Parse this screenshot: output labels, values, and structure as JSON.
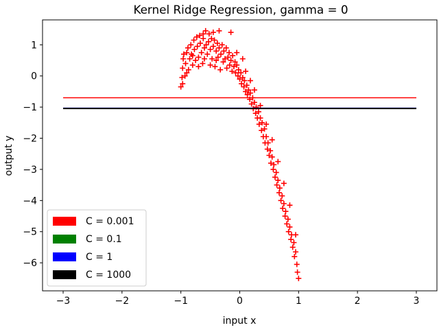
{
  "chart_data": {
    "type": "scatter",
    "title": "Kernel Ridge Regression, gamma = 0",
    "xlabel": "input x",
    "ylabel": "output y",
    "xlim": [
      -3.35,
      3.35
    ],
    "ylim": [
      -6.9,
      1.8
    ],
    "xticks": [
      -3,
      -2,
      -1,
      0,
      1,
      2,
      3
    ],
    "yticks": [
      1,
      0,
      -1,
      -2,
      -3,
      -4,
      -5,
      -6
    ],
    "grid": false,
    "legend_position": "lower-left",
    "scatter": {
      "marker": "+",
      "color": "#ff0000",
      "points": [
        [
          -1.0,
          -0.35
        ],
        [
          -0.98,
          -0.05
        ],
        [
          -0.97,
          0.25
        ],
        [
          -0.96,
          0.55
        ],
        [
          -0.95,
          0.7
        ],
        [
          -0.93,
          0.0
        ],
        [
          -0.92,
          0.4
        ],
        [
          -0.9,
          0.75
        ],
        [
          -0.88,
          0.9
        ],
        [
          -0.87,
          0.2
        ],
        [
          -0.85,
          0.55
        ],
        [
          -0.83,
          1.0
        ],
        [
          -0.82,
          0.7
        ],
        [
          -0.8,
          0.35
        ],
        [
          -0.78,
          1.15
        ],
        [
          -0.77,
          0.85
        ],
        [
          -0.75,
          0.5
        ],
        [
          -0.73,
          1.25
        ],
        [
          -0.72,
          0.95
        ],
        [
          -0.7,
          0.6
        ],
        [
          -0.68,
          1.3
        ],
        [
          -0.67,
          1.05
        ],
        [
          -0.65,
          0.75
        ],
        [
          -0.63,
          0.4
        ],
        [
          -0.62,
          1.2
        ],
        [
          -0.6,
          0.9
        ],
        [
          -0.58,
          1.45
        ],
        [
          -0.57,
          1.0
        ],
        [
          -0.55,
          0.7
        ],
        [
          -0.53,
          1.1
        ],
        [
          -0.52,
          1.35
        ],
        [
          -0.5,
          0.85
        ],
        [
          -0.48,
          1.2
        ],
        [
          -0.47,
          0.55
        ],
        [
          -0.45,
          0.95
        ],
        [
          -0.43,
          1.15
        ],
        [
          -0.42,
          0.3
        ],
        [
          -0.4,
          0.8
        ],
        [
          -0.38,
          1.05
        ],
        [
          -0.37,
          0.6
        ],
        [
          -0.35,
          0.9
        ],
        [
          -0.33,
          0.2
        ],
        [
          -0.32,
          0.7
        ],
        [
          -0.3,
          1.0
        ],
        [
          -0.28,
          0.45
        ],
        [
          -0.27,
          0.8
        ],
        [
          -0.25,
          0.55
        ],
        [
          -0.23,
          0.9
        ],
        [
          -0.22,
          0.25
        ],
        [
          -0.2,
          0.6
        ],
        [
          -0.18,
          0.75
        ],
        [
          -0.17,
          0.35
        ],
        [
          -0.15,
          0.5
        ],
        [
          -0.13,
          0.15
        ],
        [
          -0.12,
          0.65
        ],
        [
          -0.1,
          0.3
        ],
        [
          -0.08,
          0.45
        ],
        [
          -0.07,
          0.1
        ],
        [
          -0.05,
          0.35
        ],
        [
          -0.03,
          0.0
        ],
        [
          -0.02,
          0.2
        ],
        [
          0.0,
          -0.1
        ],
        [
          0.02,
          0.1
        ],
        [
          0.03,
          -0.25
        ],
        [
          0.05,
          -0.05
        ],
        [
          0.07,
          -0.35
        ],
        [
          0.08,
          -0.15
        ],
        [
          0.1,
          -0.5
        ],
        [
          0.12,
          -0.3
        ],
        [
          0.13,
          -0.6
        ],
        [
          0.15,
          -0.45
        ],
        [
          0.17,
          -0.75
        ],
        [
          0.18,
          -0.55
        ],
        [
          0.2,
          -0.9
        ],
        [
          0.22,
          -0.7
        ],
        [
          0.23,
          -1.05
        ],
        [
          0.25,
          -0.85
        ],
        [
          0.27,
          -1.2
        ],
        [
          0.28,
          -1.0
        ],
        [
          0.3,
          -1.35
        ],
        [
          0.32,
          -1.15
        ],
        [
          0.33,
          -1.55
        ],
        [
          0.35,
          -1.35
        ],
        [
          0.37,
          -1.75
        ],
        [
          0.38,
          -1.5
        ],
        [
          0.4,
          -1.95
        ],
        [
          0.42,
          -1.7
        ],
        [
          0.43,
          -2.15
        ],
        [
          0.45,
          -1.95
        ],
        [
          0.47,
          -2.35
        ],
        [
          0.48,
          -2.15
        ],
        [
          0.5,
          -2.55
        ],
        [
          0.52,
          -2.4
        ],
        [
          0.53,
          -2.8
        ],
        [
          0.55,
          -2.6
        ],
        [
          0.57,
          -3.0
        ],
        [
          0.58,
          -2.85
        ],
        [
          0.6,
          -3.25
        ],
        [
          0.62,
          -3.1
        ],
        [
          0.63,
          -3.5
        ],
        [
          0.65,
          -3.35
        ],
        [
          0.67,
          -3.75
        ],
        [
          0.68,
          -3.6
        ],
        [
          0.7,
          -4.0
        ],
        [
          0.72,
          -3.85
        ],
        [
          0.73,
          -4.25
        ],
        [
          0.75,
          -4.1
        ],
        [
          0.77,
          -4.5
        ],
        [
          0.78,
          -4.35
        ],
        [
          0.8,
          -4.75
        ],
        [
          0.82,
          -4.6
        ],
        [
          0.83,
          -5.0
        ],
        [
          0.85,
          -4.85
        ],
        [
          0.87,
          -5.25
        ],
        [
          0.88,
          -5.1
        ],
        [
          0.9,
          -5.5
        ],
        [
          0.92,
          -5.35
        ],
        [
          0.93,
          -5.8
        ],
        [
          0.95,
          -5.65
        ],
        [
          0.97,
          -6.05
        ],
        [
          0.98,
          -6.3
        ],
        [
          1.0,
          -6.5
        ],
        [
          -0.35,
          1.45
        ],
        [
          -0.15,
          1.4
        ],
        [
          -0.62,
          1.35
        ],
        [
          -0.45,
          1.4
        ],
        [
          0.05,
          0.55
        ],
        [
          -0.05,
          0.75
        ],
        [
          0.1,
          0.15
        ],
        [
          0.18,
          -0.15
        ],
        [
          0.25,
          -0.45
        ],
        [
          0.35,
          -0.95
        ],
        [
          0.45,
          -1.55
        ],
        [
          0.55,
          -2.05
        ],
        [
          0.65,
          -2.75
        ],
        [
          0.75,
          -3.45
        ],
        [
          0.85,
          -4.15
        ],
        [
          0.95,
          -5.1
        ],
        [
          -0.97,
          -0.25
        ],
        [
          -0.9,
          0.1
        ],
        [
          -0.8,
          0.65
        ],
        [
          -0.7,
          0.3
        ],
        [
          -0.6,
          0.55
        ],
        [
          -0.5,
          0.35
        ],
        [
          -0.4,
          0.5
        ]
      ]
    },
    "series": [
      {
        "name": "C = 0.001",
        "color": "#ff0000",
        "x": [
          -3,
          3
        ],
        "y": [
          -0.7,
          -0.7
        ]
      },
      {
        "name": "C = 0.1",
        "color": "#008000",
        "x": [
          -3,
          3
        ],
        "y": [
          -1.04,
          -1.04
        ]
      },
      {
        "name": "C = 1",
        "color": "#0000ff",
        "x": [
          -3,
          3
        ],
        "y": [
          -1.045,
          -1.045
        ]
      },
      {
        "name": "C = 1000",
        "color": "#000000",
        "x": [
          -3,
          3
        ],
        "y": [
          -1.045,
          -1.045
        ]
      }
    ]
  }
}
